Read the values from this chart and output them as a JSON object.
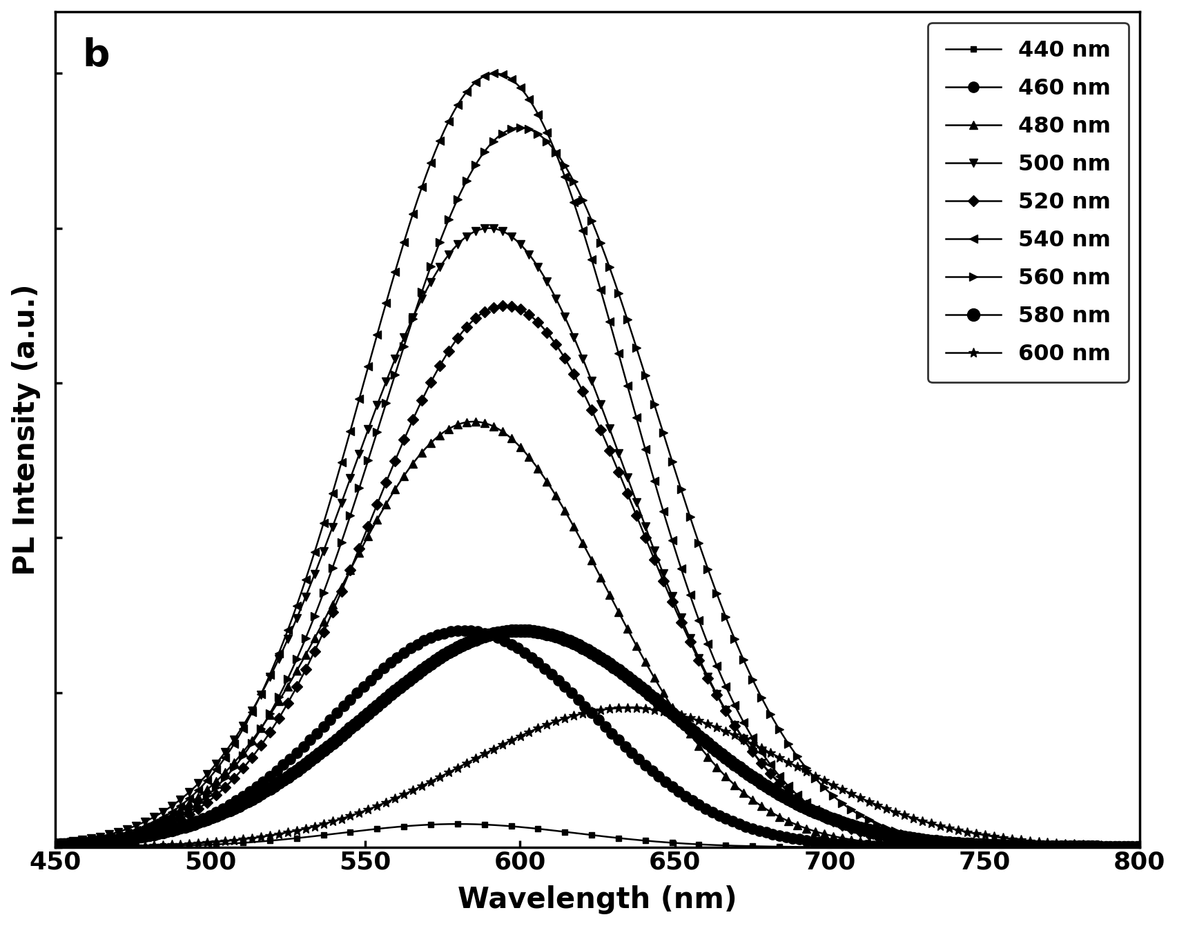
{
  "xlabel": "Wavelength (nm)",
  "ylabel": "PL Intensity (a.u.)",
  "panel_label": "b",
  "xlim": [
    450,
    800
  ],
  "ylim": [
    0,
    1.08
  ],
  "xticks": [
    450,
    500,
    550,
    600,
    650,
    700,
    750,
    800
  ],
  "series": [
    {
      "label": "440 nm",
      "peak": 580,
      "amplitude": 0.03,
      "sigma": 38,
      "marker": "s",
      "markersize": 6,
      "markevery": 12
    },
    {
      "label": "460 nm",
      "peak": 582,
      "amplitude": 0.28,
      "sigma": 42,
      "marker": "o",
      "markersize": 11,
      "markevery": 3
    },
    {
      "label": "480 nm",
      "peak": 585,
      "amplitude": 0.55,
      "sigma": 43,
      "marker": "^",
      "markersize": 9,
      "markevery": 4
    },
    {
      "label": "500 nm",
      "peak": 590,
      "amplitude": 0.8,
      "sigma": 44,
      "marker": "v",
      "markersize": 9,
      "markevery": 4
    },
    {
      "label": "520 nm",
      "peak": 595,
      "amplitude": 0.7,
      "sigma": 43,
      "marker": "D",
      "markersize": 8,
      "markevery": 4
    },
    {
      "label": "540 nm",
      "peak": 592,
      "amplitude": 1.0,
      "sigma": 42,
      "marker": "<",
      "markersize": 9,
      "markevery": 4
    },
    {
      "label": "560 nm",
      "peak": 600,
      "amplitude": 0.93,
      "sigma": 44,
      "marker": ">",
      "markersize": 9,
      "markevery": 4
    },
    {
      "label": "580 nm",
      "peak": 600,
      "amplitude": 0.28,
      "sigma": 50,
      "marker": "o",
      "markersize": 13,
      "markevery": 2
    },
    {
      "label": "600 nm",
      "peak": 635,
      "amplitude": 0.18,
      "sigma": 52,
      "marker": "*",
      "markersize": 10,
      "markevery": 4
    }
  ]
}
